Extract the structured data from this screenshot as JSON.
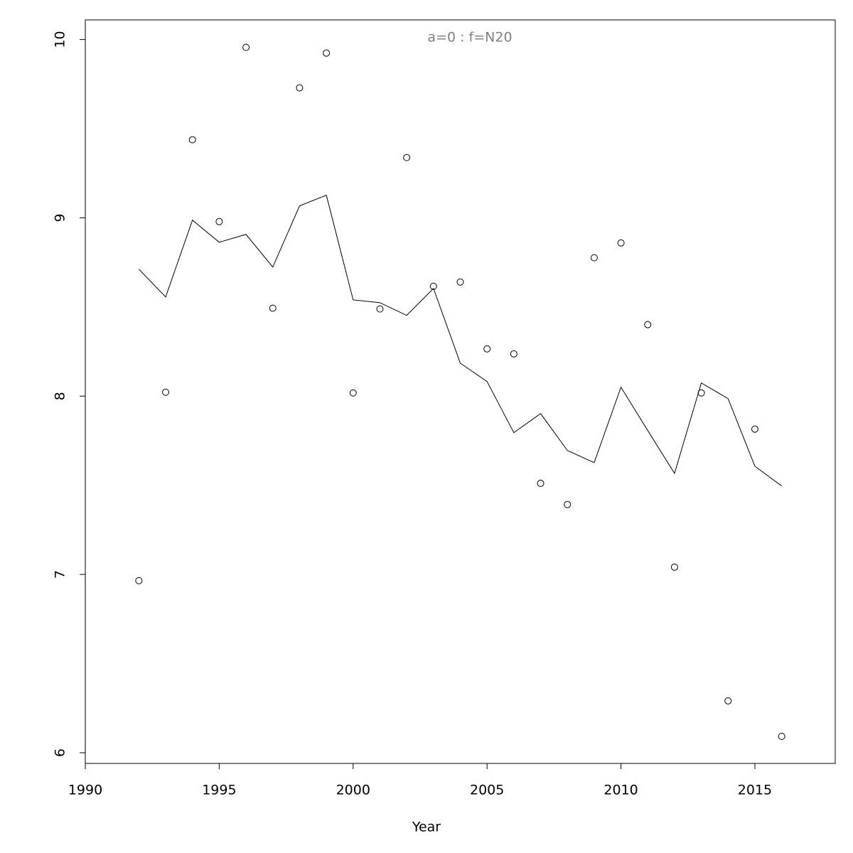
{
  "chart_data": {
    "type": "scatter",
    "title": "a=0  :  f=N20",
    "x_label": "Year",
    "x": [
      1992,
      1993,
      1994,
      1995,
      1996,
      1997,
      1998,
      1999,
      2000,
      2001,
      2002,
      2003,
      2004,
      2005,
      2006,
      2007,
      2008,
      2009,
      2010,
      2011,
      2012,
      2013,
      2014,
      2015,
      2016
    ],
    "series": [
      {
        "mark": "points",
        "color": "#000000",
        "values": [
          6.965,
          8.022,
          9.438,
          8.979,
          9.956,
          8.493,
          9.729,
          9.924,
          8.018,
          8.489,
          9.338,
          8.616,
          8.64,
          8.265,
          8.237,
          7.511,
          7.392,
          8.776,
          8.859,
          8.401,
          7.041,
          8.018,
          6.291,
          7.815,
          6.092
        ]
      },
      {
        "mark": "line",
        "color": "#000000",
        "values": [
          8.712,
          8.556,
          8.987,
          8.863,
          8.907,
          8.724,
          9.067,
          9.127,
          8.54,
          8.524,
          8.453,
          8.604,
          8.185,
          8.082,
          7.795,
          7.902,
          7.695,
          7.627,
          8.05,
          7.807,
          7.567,
          8.074,
          7.986,
          7.607,
          7.496
        ]
      }
    ],
    "xlim": [
      1990,
      2018
    ],
    "ylim": [
      5.94,
      10.11
    ],
    "xticks": [
      1990,
      1995,
      2000,
      2005,
      2010,
      2015
    ],
    "yticks": [
      6,
      7,
      8,
      9,
      10
    ],
    "grid": false
  }
}
